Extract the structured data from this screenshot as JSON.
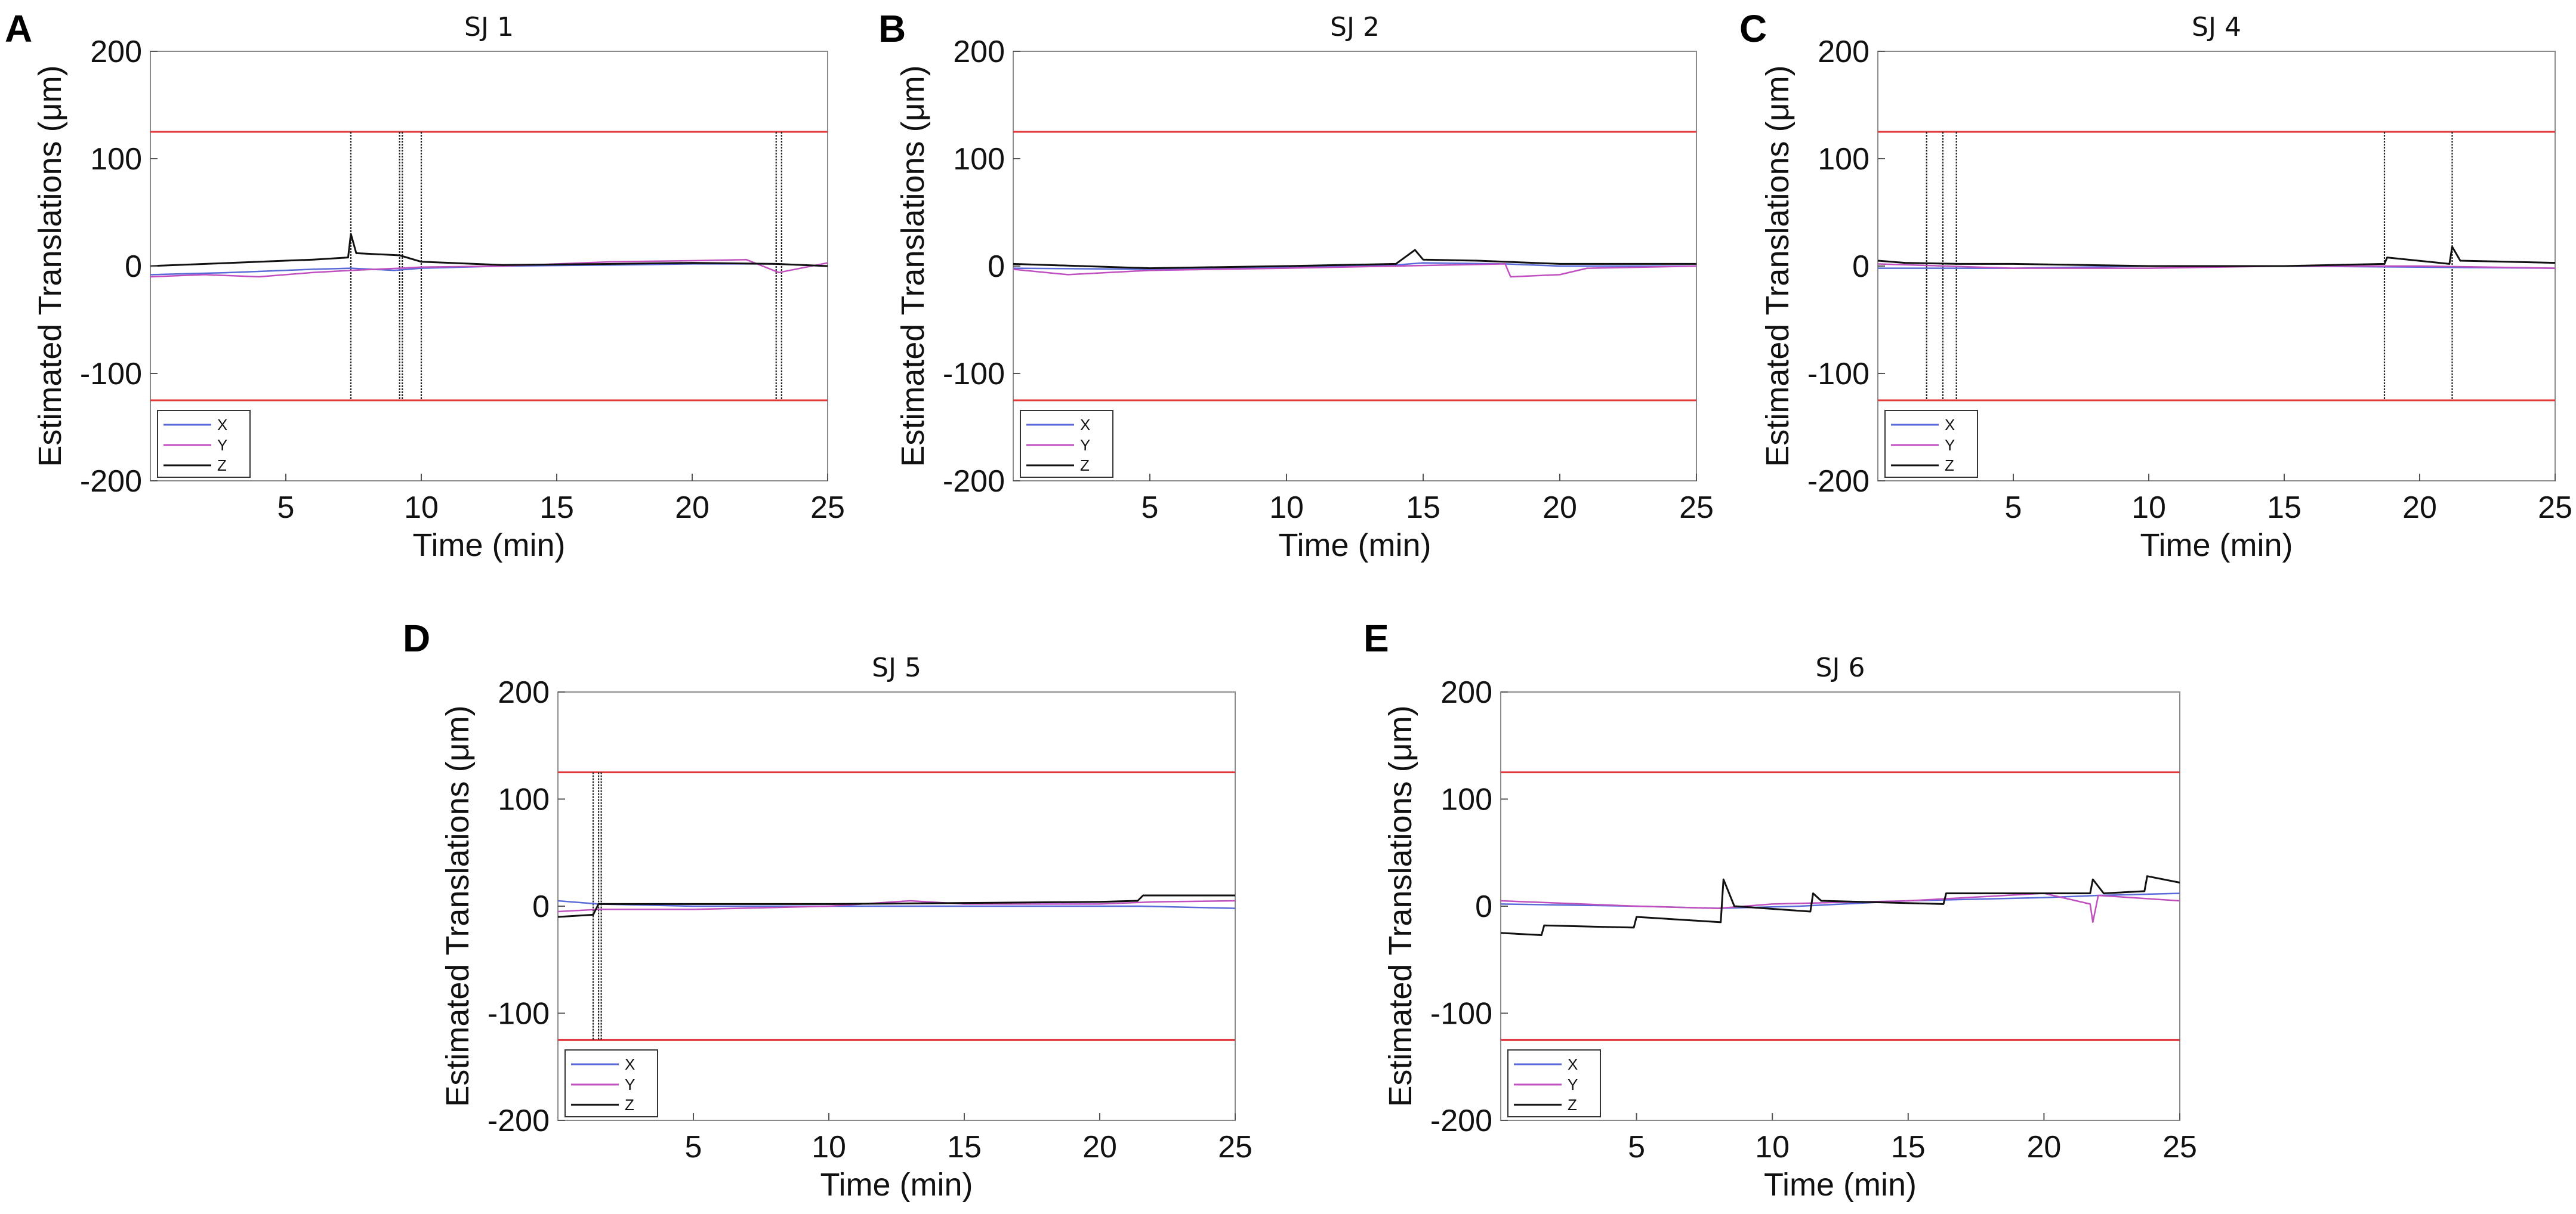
{
  "chart_data": [
    {
      "panel": "A",
      "title": "SJ 1",
      "type": "line",
      "xlabel": "Time (min)",
      "ylabel": "Estimated Translations (μm)",
      "xlim": [
        0,
        25
      ],
      "ylim": [
        -200,
        200
      ],
      "xticks": [
        5,
        10,
        15,
        20,
        25
      ],
      "yticks": [
        -200,
        -100,
        0,
        100,
        200
      ],
      "threshold_lines": [
        125,
        -125
      ],
      "event_lines": [
        7.4,
        9.2,
        9.3,
        10.0,
        23.1,
        23.3
      ],
      "legend": [
        "X",
        "Y",
        "Z"
      ],
      "series": [
        {
          "name": "X",
          "color": "#5a6ad8",
          "x": [
            0,
            3,
            6,
            7.4,
            9,
            10,
            13,
            17,
            20,
            23,
            25
          ],
          "y": [
            -8,
            -6,
            -3,
            -2,
            -4,
            -2,
            0,
            1,
            2,
            2,
            0
          ]
        },
        {
          "name": "Y",
          "color": "#c04fc0",
          "x": [
            0,
            2,
            4,
            6,
            7.4,
            9.2,
            10,
            13,
            17,
            20,
            22,
            23.2,
            25
          ],
          "y": [
            -10,
            -8,
            -10,
            -6,
            -4,
            -2,
            -1,
            0,
            4,
            5,
            6,
            -6,
            3
          ]
        },
        {
          "name": "Z",
          "color": "#111111",
          "x": [
            0,
            3,
            6,
            7.3,
            7.4,
            7.6,
            9.2,
            10,
            13,
            17,
            20,
            23.1,
            25
          ],
          "y": [
            0,
            3,
            6,
            8,
            30,
            12,
            10,
            4,
            1,
            2,
            3,
            2,
            0
          ]
        }
      ]
    },
    {
      "panel": "B",
      "title": "SJ 2",
      "type": "line",
      "xlabel": "Time (min)",
      "ylabel": "Estimated Translations (μm)",
      "xlim": [
        0,
        25
      ],
      "ylim": [
        -200,
        200
      ],
      "xticks": [
        5,
        10,
        15,
        20,
        25
      ],
      "yticks": [
        -200,
        -100,
        0,
        100,
        200
      ],
      "threshold_lines": [
        125,
        -125
      ],
      "event_lines": [],
      "legend": [
        "X",
        "Y",
        "Z"
      ],
      "series": [
        {
          "name": "X",
          "color": "#5a6ad8",
          "x": [
            0,
            5,
            10,
            14,
            15,
            18,
            20,
            25
          ],
          "y": [
            -2,
            -3,
            -1,
            1,
            3,
            2,
            0,
            0
          ]
        },
        {
          "name": "Y",
          "color": "#c04fc0",
          "x": [
            0,
            2,
            5,
            10,
            14,
            18,
            18.2,
            20,
            21,
            25
          ],
          "y": [
            -3,
            -8,
            -4,
            -2,
            0,
            2,
            -10,
            -8,
            -2,
            0
          ]
        },
        {
          "name": "Z",
          "color": "#111111",
          "x": [
            0,
            5,
            10,
            14,
            14.7,
            15,
            17,
            20,
            25
          ],
          "y": [
            2,
            -2,
            0,
            2,
            15,
            6,
            5,
            2,
            2
          ]
        }
      ]
    },
    {
      "panel": "C",
      "title": "SJ 4",
      "type": "line",
      "xlabel": "Time (min)",
      "ylabel": "Estimated Translations (μm)",
      "xlim": [
        0,
        25
      ],
      "ylim": [
        -200,
        200
      ],
      "xticks": [
        5,
        10,
        15,
        20,
        25
      ],
      "yticks": [
        -200,
        -100,
        0,
        100,
        200
      ],
      "threshold_lines": [
        125,
        -125
      ],
      "event_lines": [
        1.8,
        2.4,
        2.9,
        18.7,
        21.2
      ],
      "legend": [
        "X",
        "Y",
        "Z"
      ],
      "series": [
        {
          "name": "X",
          "color": "#5a6ad8",
          "x": [
            0,
            5,
            10,
            15,
            20,
            25
          ],
          "y": [
            -2,
            -2,
            0,
            0,
            -1,
            -2
          ]
        },
        {
          "name": "Y",
          "color": "#c04fc0",
          "x": [
            0,
            5,
            10,
            15,
            20,
            25
          ],
          "y": [
            2,
            -2,
            -2,
            0,
            0,
            -2
          ]
        },
        {
          "name": "Z",
          "color": "#111111",
          "x": [
            0,
            1,
            3,
            5,
            10,
            15,
            18.7,
            18.8,
            21.1,
            21.2,
            21.5,
            25
          ],
          "y": [
            5,
            3,
            2,
            2,
            0,
            0,
            2,
            8,
            2,
            18,
            5,
            3
          ]
        }
      ]
    },
    {
      "panel": "D",
      "title": "SJ 5",
      "type": "line",
      "xlabel": "Time (min)",
      "ylabel": "Estimated Translations (μm)",
      "xlim": [
        0,
        25
      ],
      "ylim": [
        -200,
        200
      ],
      "xticks": [
        5,
        10,
        15,
        20,
        25
      ],
      "yticks": [
        -200,
        -100,
        0,
        100,
        200
      ],
      "threshold_lines": [
        125,
        -125
      ],
      "event_lines": [
        1.3,
        1.5,
        1.6
      ],
      "legend": [
        "X",
        "Y",
        "Z"
      ],
      "series": [
        {
          "name": "X",
          "color": "#5a6ad8",
          "x": [
            0,
            1.5,
            5,
            10,
            15,
            20,
            21.5,
            25
          ],
          "y": [
            5,
            2,
            0,
            0,
            0,
            0,
            0,
            -2
          ]
        },
        {
          "name": "Y",
          "color": "#c04fc0",
          "x": [
            0,
            1.5,
            5,
            10,
            13,
            15,
            20,
            22,
            25
          ],
          "y": [
            -5,
            -3,
            -3,
            0,
            5,
            2,
            2,
            4,
            5
          ]
        },
        {
          "name": "Z",
          "color": "#111111",
          "x": [
            0,
            1.3,
            1.5,
            5,
            10,
            15,
            20,
            21.4,
            21.6,
            25
          ],
          "y": [
            -10,
            -8,
            2,
            2,
            2,
            3,
            4,
            5,
            10,
            10
          ]
        }
      ]
    },
    {
      "panel": "E",
      "title": "SJ 6",
      "type": "line",
      "xlabel": "Time (min)",
      "ylabel": "Estimated Translations (μm)",
      "xlim": [
        0,
        25
      ],
      "ylim": [
        -200,
        200
      ],
      "xticks": [
        5,
        10,
        15,
        20,
        25
      ],
      "yticks": [
        -200,
        -100,
        0,
        100,
        200
      ],
      "threshold_lines": [
        125,
        -125
      ],
      "event_lines": [],
      "legend": [
        "X",
        "Y",
        "Z"
      ],
      "series": [
        {
          "name": "X",
          "color": "#5a6ad8",
          "x": [
            0,
            5,
            8,
            11,
            15,
            20,
            22,
            25
          ],
          "y": [
            2,
            0,
            -2,
            0,
            5,
            8,
            10,
            12
          ]
        },
        {
          "name": "Y",
          "color": "#c04fc0",
          "x": [
            0,
            5,
            8,
            10,
            15,
            20,
            21.7,
            21.8,
            22,
            25
          ],
          "y": [
            5,
            0,
            -2,
            2,
            5,
            12,
            2,
            -15,
            10,
            5
          ]
        },
        {
          "name": "Z",
          "color": "#111111",
          "x": [
            0,
            1.5,
            1.6,
            4.9,
            5,
            8.1,
            8.2,
            8.6,
            11.4,
            11.5,
            11.8,
            16.3,
            16.4,
            21.7,
            21.8,
            22.2,
            23.7,
            23.8,
            25
          ],
          "y": [
            -25,
            -27,
            -18,
            -20,
            -10,
            -15,
            25,
            0,
            -5,
            12,
            5,
            2,
            12,
            12,
            25,
            12,
            14,
            28,
            22
          ]
        }
      ]
    }
  ]
}
